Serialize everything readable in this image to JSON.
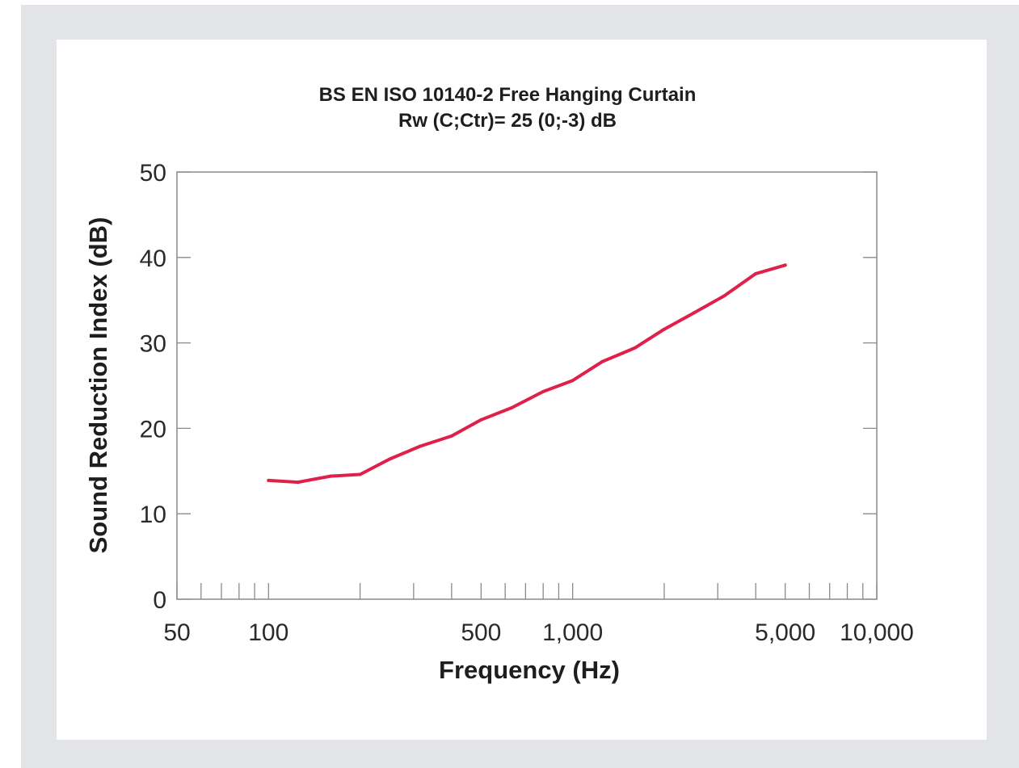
{
  "chart_data": {
    "type": "line",
    "title": "BS EN ISO 10140-2 Free Hanging Curtain",
    "subtitle": "Rw (C;Ctr)= 25 (0;-3) dB",
    "xlabel": "Frequency (Hz)",
    "ylabel": "Sound Reduction Index (dB)",
    "x_scale": "log",
    "xlim": [
      50,
      10000
    ],
    "ylim": [
      0,
      50
    ],
    "x_ticks": [
      {
        "value": 50,
        "label": "50"
      },
      {
        "value": 100,
        "label": "100"
      },
      {
        "value": 500,
        "label": "500"
      },
      {
        "value": 1000,
        "label": "1,000"
      },
      {
        "value": 5000,
        "label": "5,000"
      },
      {
        "value": 10000,
        "label": "10,000"
      }
    ],
    "y_ticks": [
      {
        "value": 0,
        "label": "0"
      },
      {
        "value": 10,
        "label": "10"
      },
      {
        "value": 20,
        "label": "20"
      },
      {
        "value": 30,
        "label": "30"
      },
      {
        "value": 40,
        "label": "40"
      },
      {
        "value": 50,
        "label": "50"
      }
    ],
    "grid": false,
    "line_color": "#e0204a",
    "series": [
      {
        "x": [
          100,
          125,
          160,
          200,
          250,
          315,
          400,
          500,
          630,
          800,
          1000,
          1250,
          1600,
          2000,
          2500,
          3150,
          4000,
          5000
        ],
        "values": [
          13.9,
          13.7,
          14.4,
          14.6,
          16.4,
          17.9,
          19.1,
          21.0,
          22.4,
          24.3,
          25.6,
          27.8,
          29.4,
          31.6,
          33.5,
          35.5,
          38.1,
          39.1
        ]
      }
    ]
  }
}
